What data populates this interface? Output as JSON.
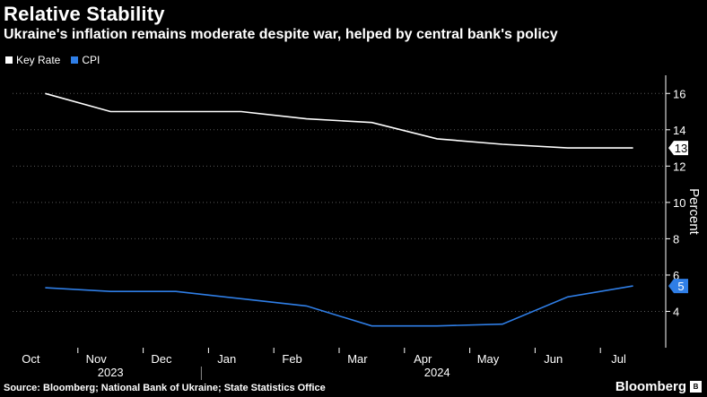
{
  "header": {
    "title": "Relative Stability",
    "subtitle": "Ukraine's inflation remains moderate despite war, helped by central bank's policy"
  },
  "footer": {
    "source": "Source: Bloomberg; National Bank of Ukraine; State Statistics Office",
    "brand": "Bloomberg",
    "brand_icon": "bloomberg-icon"
  },
  "chart_data": {
    "type": "line",
    "title": "Relative Stability",
    "subtitle": "Ukraine's inflation remains moderate despite war, helped by central bank's policy",
    "xlabel": "",
    "ylabel": "Percent",
    "ylim": [
      2,
      17
    ],
    "yticks": [
      4,
      6,
      8,
      10,
      12,
      14,
      16
    ],
    "grid": true,
    "legend_placement": "top-left",
    "month_labels": [
      "Oct",
      "Nov",
      "Dec",
      "Jan",
      "Feb",
      "Mar",
      "Apr",
      "May",
      "Jun",
      "Jul"
    ],
    "year_labels": [
      {
        "label": "2023",
        "month_index": 1
      },
      {
        "label": "2024",
        "month_index": 6
      }
    ],
    "series": [
      {
        "name": "Key Rate",
        "color": "#ffffff",
        "end_label": "13",
        "points": [
          [
            0.5,
            16
          ],
          [
            1.5,
            15.0
          ],
          [
            2.5,
            15
          ],
          [
            3.5,
            15
          ],
          [
            4.5,
            14.6
          ],
          [
            5.5,
            14.4
          ],
          [
            6.5,
            13.5
          ],
          [
            7.5,
            13.2
          ],
          [
            8.5,
            13
          ],
          [
            9.5,
            13
          ]
        ]
      },
      {
        "name": "CPI",
        "color": "#2f7ee6",
        "end_label": "5",
        "points": [
          [
            0.5,
            5.3
          ],
          [
            1.5,
            5.1
          ],
          [
            2.5,
            5.1
          ],
          [
            3.5,
            4.7
          ],
          [
            4.5,
            4.3
          ],
          [
            5.5,
            3.2
          ],
          [
            6.5,
            3.2
          ],
          [
            7.5,
            3.3
          ],
          [
            8.5,
            4.8
          ],
          [
            9.5,
            5.4
          ]
        ]
      }
    ]
  }
}
